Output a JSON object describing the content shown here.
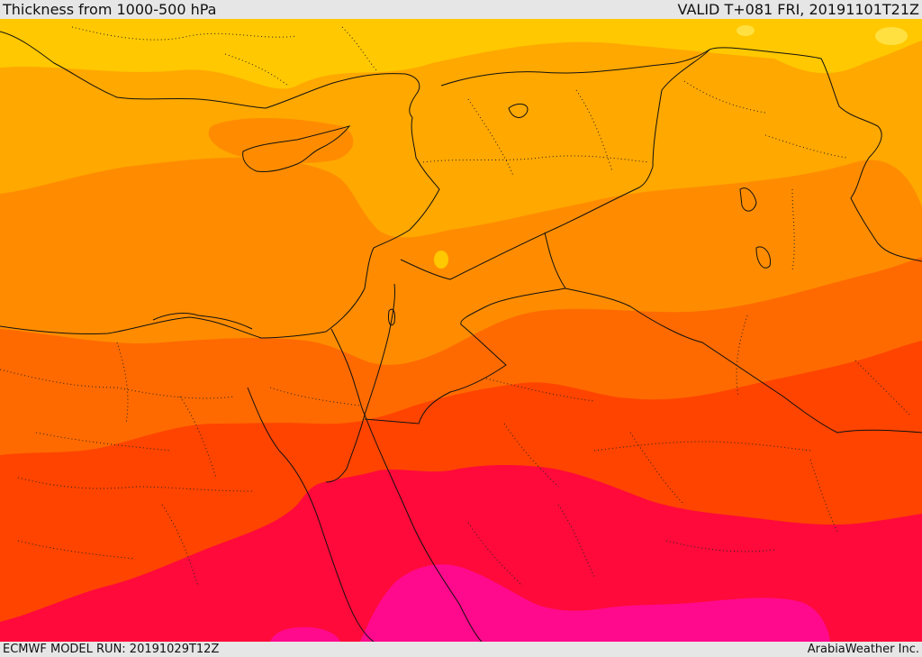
{
  "header": {
    "title": "Thickness from 1000-500 hPa",
    "valid_time": "VALID T+081 FRI, 20191101T21Z"
  },
  "footer": {
    "model_run": "ECMWF MODEL RUN: 20191029T12Z",
    "credit": "ArabiaWeather Inc."
  },
  "map": {
    "field": "1000-500 hPa thickness",
    "palette": [
      "#ffc800",
      "#ffa800",
      "#ff8c00",
      "#ff6a00",
      "#ff4400",
      "#ff0a3a",
      "#ff0a8c"
    ]
  }
}
